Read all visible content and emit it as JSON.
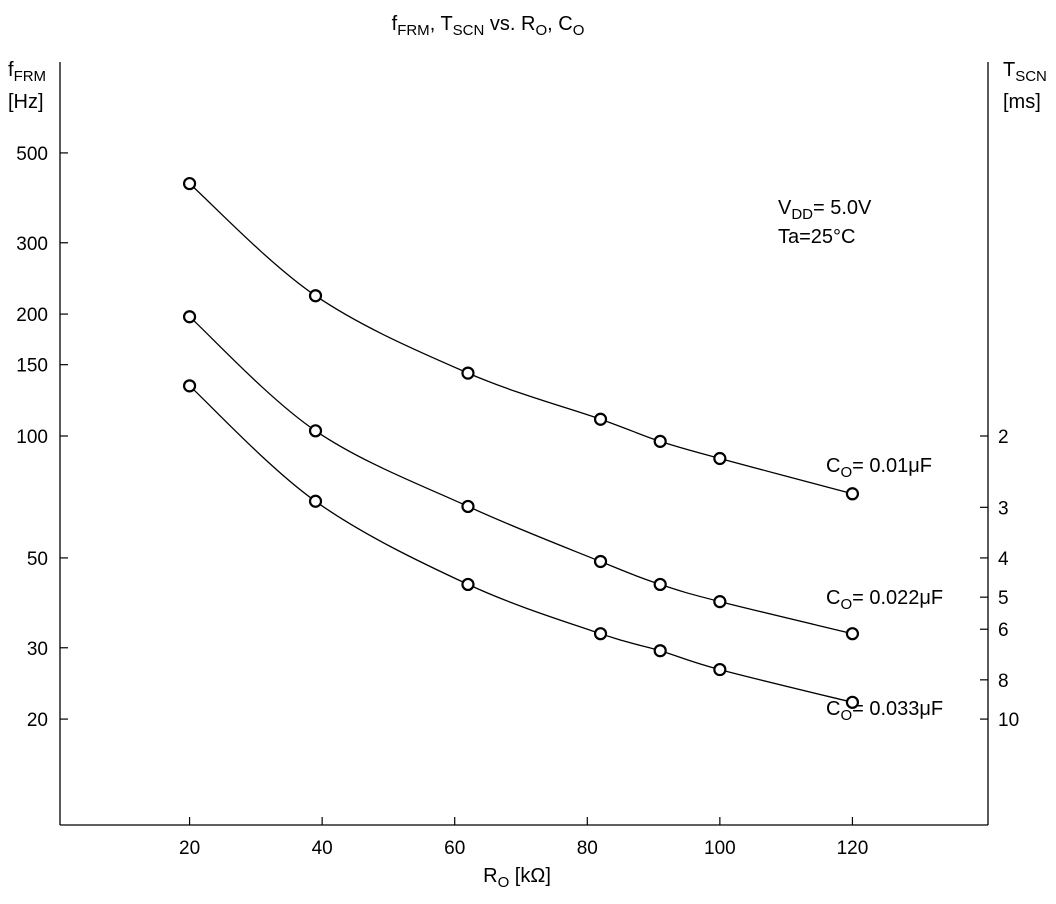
{
  "chart_data": {
    "type": "line",
    "title": {
      "main": "f",
      "main_sub": "FRM",
      "mid": ", T",
      "mid_sub": "SCN",
      "vs": " vs. R",
      "vs_sub": "O",
      "end": ", C",
      "end_sub": "O"
    },
    "xlabel": {
      "main": "R",
      "sub": "O",
      "unit": " [kΩ]"
    },
    "ylabel_left": {
      "line1_main": "f",
      "line1_sub": "FRM",
      "line2": "[Hz]"
    },
    "ylabel_right": {
      "line1_main": "T",
      "line1_sub": "SCN",
      "line2": "[ms]"
    },
    "xlim": [
      0,
      140
    ],
    "ylim": [
      10,
      1000
    ],
    "y_scale": "log",
    "x_ticks": [
      20,
      40,
      60,
      80,
      100,
      120
    ],
    "y_ticks_left": [
      500,
      300,
      200,
      150,
      100,
      50,
      30,
      20
    ],
    "y_ticks_right": [
      2,
      3,
      4,
      5,
      6,
      8,
      10
    ],
    "grid": false,
    "conditions": {
      "line1_main": "V",
      "line1_sub": "DD",
      "line1_end": "= 5.0V",
      "line2": "Ta=25°C"
    },
    "series": [
      {
        "name": "CO= 0.01μF",
        "label_main": "C",
        "label_sub": "O",
        "label_end": "= 0.01μF",
        "x": [
          20,
          39,
          62,
          82,
          91,
          100,
          120
        ],
        "y": [
          420,
          222,
          143,
          110,
          97,
          88,
          72
        ]
      },
      {
        "name": "CO= 0.022μF",
        "label_main": "C",
        "label_sub": "O",
        "label_end": "= 0.022μF",
        "x": [
          20,
          39,
          62,
          82,
          91,
          100,
          120
        ],
        "y": [
          197,
          103,
          67,
          49,
          43,
          39,
          32.5
        ]
      },
      {
        "name": "CO= 0.033μF",
        "label_main": "C",
        "label_sub": "O",
        "label_end": "= 0.033μF",
        "x": [
          20,
          39,
          62,
          82,
          91,
          100,
          120
        ],
        "y": [
          133,
          69,
          43,
          32.5,
          29.5,
          26.5,
          22
        ]
      }
    ]
  }
}
